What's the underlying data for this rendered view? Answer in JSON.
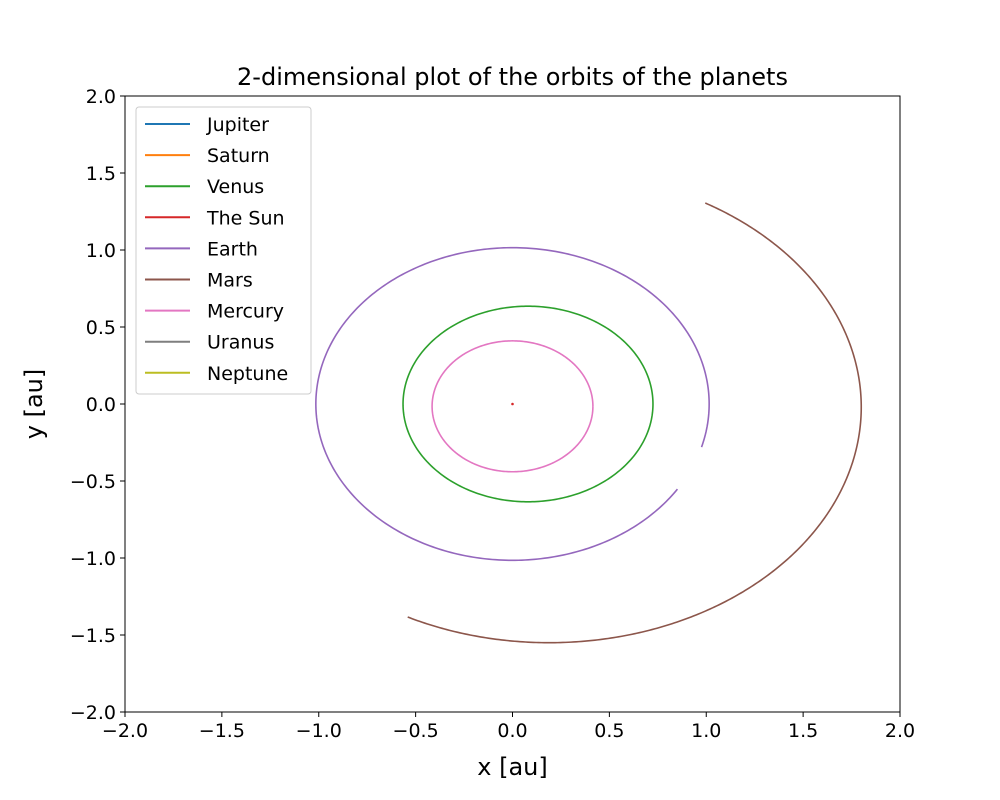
{
  "chart_data": {
    "type": "line",
    "title": "2-dimensional plot of the orbits of the planets",
    "xlabel": "x [au]",
    "ylabel": "y [au]",
    "xlim": [
      -2.0,
      2.0
    ],
    "ylim": [
      -2.0,
      2.0
    ],
    "xticks": [
      "−2.0",
      "−1.5",
      "−1.0",
      "−0.5",
      "0.0",
      "0.5",
      "1.0",
      "1.5",
      "2.0"
    ],
    "yticks": [
      "−2.0",
      "−1.5",
      "−1.0",
      "−0.5",
      "0.0",
      "0.5",
      "1.0",
      "1.5",
      "2.0"
    ],
    "grid": false,
    "legend_position": "upper-left",
    "series": [
      {
        "name": "Jupiter",
        "color": "#1f77b4",
        "orbit": null
      },
      {
        "name": "Saturn",
        "color": "#ff7f0e",
        "orbit": null
      },
      {
        "name": "Venus",
        "color": "#2ca02c",
        "orbit": {
          "cx": 0.08,
          "cy": 0.0,
          "rx": 0.645,
          "ry": 0.635,
          "start_deg": 0,
          "end_deg": 360
        }
      },
      {
        "name": "The Sun",
        "color": "#d62728",
        "point": [
          0.0,
          0.0
        ]
      },
      {
        "name": "Earth",
        "color": "#9467bd",
        "orbit": {
          "cx": 0.0,
          "cy": 0.0,
          "rx": 1.015,
          "ry": 1.015,
          "start_deg": -16,
          "end_deg": 327
        }
      },
      {
        "name": "Mars",
        "color": "#8c564b",
        "orbit": {
          "cx": 0.19,
          "cy": -0.02,
          "rx": 1.61,
          "ry": 1.53,
          "start_deg": 243,
          "end_deg": 420
        }
      },
      {
        "name": "Mercury",
        "color": "#e377c2",
        "orbit": {
          "cx": 0.0,
          "cy": -0.015,
          "rx": 0.415,
          "ry": 0.425,
          "start_deg": 0,
          "end_deg": 360
        }
      },
      {
        "name": "Uranus",
        "color": "#7f7f7f",
        "orbit": null
      },
      {
        "name": "Neptune",
        "color": "#bcbd22",
        "orbit": null
      }
    ]
  }
}
